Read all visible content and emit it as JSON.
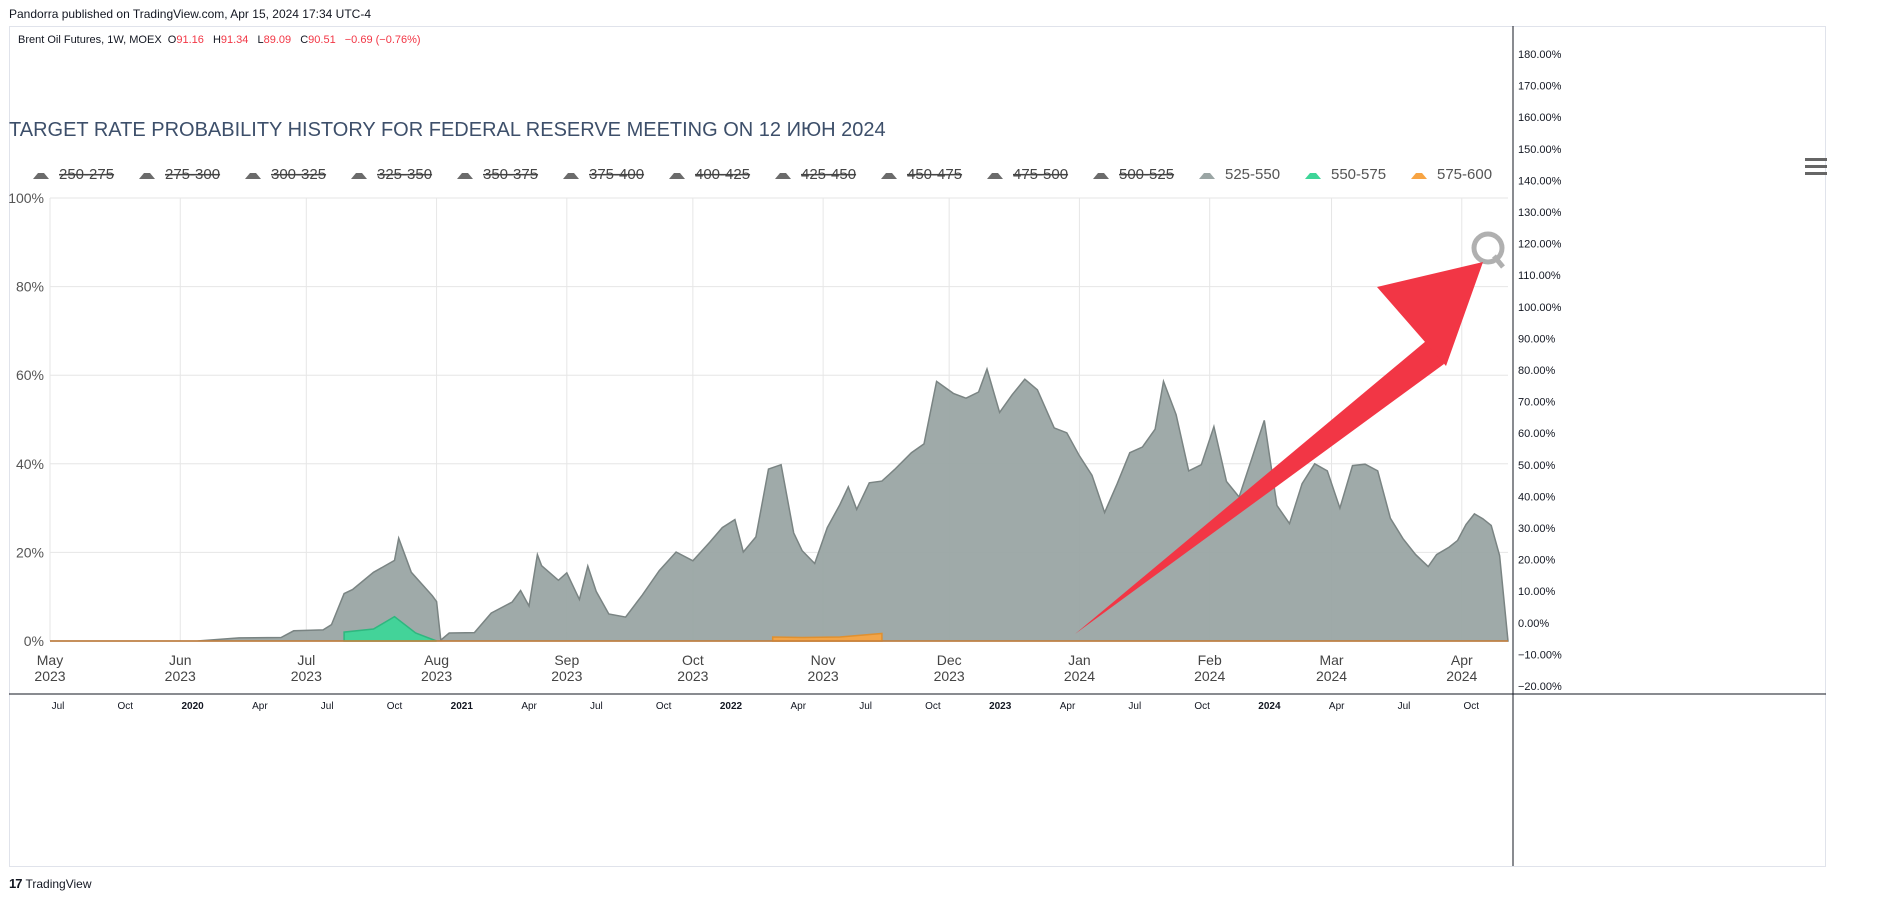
{
  "publisher_line": "Pandorra published on TradingView.com, Apr 15, 2024 17:34 UTC-4",
  "symbol": {
    "name": "Brent Oil Futures, 1W, MOEX",
    "ohlc": [
      {
        "label": "O",
        "value": "91.16"
      },
      {
        "label": "H",
        "value": "91.34"
      },
      {
        "label": "L",
        "value": "89.09"
      },
      {
        "label": "C",
        "value": "90.51"
      }
    ],
    "change": "−0.69 (−0.76%)"
  },
  "footer": {
    "logo": "17",
    "brand": "TradingView"
  },
  "colors": {
    "gray_area": "#9aa5a4",
    "gray_line": "#7a8483",
    "green_area": "#3ed598",
    "orange_area": "#f7a443",
    "arrow": "#f23645",
    "title": "#3d4f6a",
    "grid": "#e6e6e6"
  },
  "icons": {
    "menu": "hamburger-menu-icon",
    "watermark": "quikstrike-q-logo"
  },
  "chart_data": {
    "type": "area",
    "title": "TARGET RATE PROBABILITY HISTORY FOR FEDERAL RESERVE MEETING ON 12 ИЮН 2024",
    "ylim": [
      0,
      100
    ],
    "yticks": [
      "0%",
      "20%",
      "40%",
      "60%",
      "80%",
      "100%"
    ],
    "xticks": [
      {
        "month": "May",
        "year": "2023"
      },
      {
        "month": "Jun",
        "year": "2023"
      },
      {
        "month": "Jul",
        "year": "2023"
      },
      {
        "month": "Aug",
        "year": "2023"
      },
      {
        "month": "Sep",
        "year": "2023"
      },
      {
        "month": "Oct",
        "year": "2023"
      },
      {
        "month": "Nov",
        "year": "2023"
      },
      {
        "month": "Dec",
        "year": "2023"
      },
      {
        "month": "Jan",
        "year": "2024"
      },
      {
        "month": "Feb",
        "year": "2024"
      },
      {
        "month": "Mar",
        "year": "2024"
      },
      {
        "month": "Apr",
        "year": "2024"
      }
    ],
    "x_range": [
      "2023-05-01",
      "2024-04-12"
    ],
    "legend": [
      {
        "label": "250-275",
        "active": false
      },
      {
        "label": "275-300",
        "active": false
      },
      {
        "label": "300-325",
        "active": false
      },
      {
        "label": "325-350",
        "active": false
      },
      {
        "label": "350-375",
        "active": false
      },
      {
        "label": "375-400",
        "active": false
      },
      {
        "label": "400-425",
        "active": false
      },
      {
        "label": "425-450",
        "active": false
      },
      {
        "label": "450-475",
        "active": false
      },
      {
        "label": "475-500",
        "active": false
      },
      {
        "label": "500-525",
        "active": false
      },
      {
        "label": "525-550",
        "active": true,
        "color": "#9aa5a4"
      },
      {
        "label": "550-575",
        "active": true,
        "color": "#3ed598"
      },
      {
        "label": "575-600",
        "active": true,
        "color": "#f7a443"
      }
    ],
    "series": [
      {
        "name": "525-550",
        "points": [
          [
            "2023-05-01",
            0
          ],
          [
            "2023-06-05",
            0
          ],
          [
            "2023-06-15",
            0.7
          ],
          [
            "2023-06-25",
            0.8
          ],
          [
            "2023-06-28",
            2.3
          ],
          [
            "2023-07-05",
            2.5
          ],
          [
            "2023-07-07",
            3.7
          ],
          [
            "2023-07-10",
            10.7
          ],
          [
            "2023-07-12",
            11.6
          ],
          [
            "2023-07-17",
            15.5
          ],
          [
            "2023-07-22",
            18.2
          ],
          [
            "2023-07-23",
            23.2
          ],
          [
            "2023-07-26",
            15.5
          ],
          [
            "2023-07-31",
            10.2
          ],
          [
            "2023-08-01",
            8.9
          ],
          [
            "2023-08-02",
            0.2
          ],
          [
            "2023-08-04",
            1.8
          ],
          [
            "2023-08-10",
            1.9
          ],
          [
            "2023-08-14",
            6.3
          ],
          [
            "2023-08-19",
            8.8
          ],
          [
            "2023-08-21",
            11.4
          ],
          [
            "2023-08-23",
            7.9
          ],
          [
            "2023-08-25",
            19.5
          ],
          [
            "2023-08-26",
            17.0
          ],
          [
            "2023-08-30",
            13.7
          ],
          [
            "2023-09-01",
            15.4
          ],
          [
            "2023-09-04",
            9.4
          ],
          [
            "2023-09-06",
            16.9
          ],
          [
            "2023-09-08",
            11.2
          ],
          [
            "2023-09-11",
            6.1
          ],
          [
            "2023-09-15",
            5.4
          ],
          [
            "2023-09-19",
            10.4
          ],
          [
            "2023-09-23",
            15.9
          ],
          [
            "2023-09-27",
            20.1
          ],
          [
            "2023-10-01",
            18.1
          ],
          [
            "2023-10-05",
            22.3
          ],
          [
            "2023-10-08",
            25.6
          ],
          [
            "2023-10-11",
            27.4
          ],
          [
            "2023-10-13",
            20.1
          ],
          [
            "2023-10-16",
            23.5
          ],
          [
            "2023-10-19",
            38.8
          ],
          [
            "2023-10-22",
            39.8
          ],
          [
            "2023-10-25",
            24.4
          ],
          [
            "2023-10-27",
            20.4
          ],
          [
            "2023-10-30",
            17.5
          ],
          [
            "2023-11-02",
            25.6
          ],
          [
            "2023-11-05",
            30.8
          ],
          [
            "2023-11-07",
            34.8
          ],
          [
            "2023-11-09",
            29.7
          ],
          [
            "2023-11-12",
            35.7
          ],
          [
            "2023-11-15",
            36.1
          ],
          [
            "2023-11-18",
            38.7
          ],
          [
            "2023-11-22",
            42.5
          ],
          [
            "2023-11-25",
            44.5
          ],
          [
            "2023-11-28",
            58.6
          ],
          [
            "2023-12-02",
            55.9
          ],
          [
            "2023-12-05",
            54.8
          ],
          [
            "2023-12-08",
            56.2
          ],
          [
            "2023-12-10",
            61.4
          ],
          [
            "2023-12-13",
            51.6
          ],
          [
            "2023-12-16",
            55.6
          ],
          [
            "2023-12-19",
            59.1
          ],
          [
            "2023-12-22",
            56.7
          ],
          [
            "2023-12-26",
            48.1
          ],
          [
            "2023-12-29",
            47.0
          ],
          [
            "2024-01-01",
            41.8
          ],
          [
            "2024-01-04",
            37.4
          ],
          [
            "2024-01-07",
            29.0
          ],
          [
            "2024-01-10",
            35.5
          ],
          [
            "2024-01-13",
            42.5
          ],
          [
            "2024-01-16",
            43.8
          ],
          [
            "2024-01-19",
            47.8
          ],
          [
            "2024-01-21",
            58.6
          ],
          [
            "2024-01-24",
            51.1
          ],
          [
            "2024-01-27",
            38.4
          ],
          [
            "2024-01-30",
            39.8
          ],
          [
            "2024-02-02",
            48.4
          ],
          [
            "2024-02-05",
            36.0
          ],
          [
            "2024-02-08",
            32.5
          ],
          [
            "2024-02-11",
            41.1
          ],
          [
            "2024-02-14",
            49.8
          ],
          [
            "2024-02-17",
            30.6
          ],
          [
            "2024-02-20",
            26.5
          ],
          [
            "2024-02-23",
            35.5
          ],
          [
            "2024-02-26",
            40.0
          ],
          [
            "2024-02-29",
            38.4
          ],
          [
            "2024-03-03",
            30.0
          ],
          [
            "2024-03-06",
            39.6
          ],
          [
            "2024-03-09",
            39.9
          ],
          [
            "2024-03-12",
            38.4
          ],
          [
            "2024-03-15",
            27.7
          ],
          [
            "2024-03-18",
            23.1
          ],
          [
            "2024-03-21",
            19.5
          ],
          [
            "2024-03-24",
            16.8
          ],
          [
            "2024-03-26",
            19.5
          ],
          [
            "2024-03-29",
            21.2
          ],
          [
            "2024-03-31",
            22.7
          ],
          [
            "2024-04-02",
            26.3
          ],
          [
            "2024-04-04",
            28.7
          ],
          [
            "2024-04-06",
            27.6
          ],
          [
            "2024-04-08",
            26.1
          ],
          [
            "2024-04-10",
            19.3
          ],
          [
            "2024-04-12",
            0
          ]
        ]
      },
      {
        "name": "550-575",
        "points": [
          [
            "2023-07-10",
            2.0
          ],
          [
            "2023-07-17",
            2.7
          ],
          [
            "2023-07-22",
            5.5
          ],
          [
            "2023-07-27",
            1.8
          ],
          [
            "2023-08-01",
            0
          ]
        ]
      },
      {
        "name": "575-600",
        "points": [
          [
            "2023-10-20",
            0.9
          ],
          [
            "2023-10-27",
            0.8
          ],
          [
            "2023-11-05",
            0.9
          ],
          [
            "2023-11-15",
            1.7
          ]
        ]
      }
    ],
    "annotation": {
      "type": "arrow",
      "color": "#f23645",
      "direction": "up-right"
    }
  },
  "right_axis": {
    "ticks": [
      "180.00%",
      "170.00%",
      "160.00%",
      "150.00%",
      "140.00%",
      "130.00%",
      "120.00%",
      "110.00%",
      "100.00%",
      "90.00%",
      "80.00%",
      "70.00%",
      "60.00%",
      "50.00%",
      "40.00%",
      "30.00%",
      "20.00%",
      "10.00%",
      "0.00%",
      "−10.00%",
      "−20.00%"
    ]
  },
  "bottom_axis": {
    "ticks": [
      "Jul",
      "Oct",
      "2020",
      "Apr",
      "Jul",
      "Oct",
      "2021",
      "Apr",
      "Jul",
      "Oct",
      "2022",
      "Apr",
      "Jul",
      "Oct",
      "2023",
      "Apr",
      "Jul",
      "Oct",
      "2024",
      "Apr",
      "Jul",
      "Oct"
    ],
    "bold": [
      "2020",
      "2021",
      "2022",
      "2023",
      "2024"
    ]
  }
}
